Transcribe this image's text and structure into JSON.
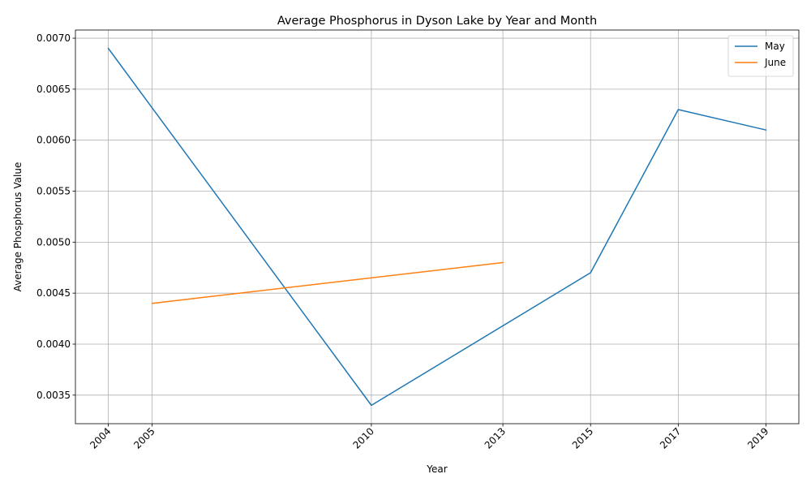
{
  "chart_data": {
    "type": "line",
    "title": "Average Phosphorus in Dyson Lake by Year and Month",
    "xlabel": "Year",
    "ylabel": "Average Phosphorus Value",
    "xlim": [
      2003.25,
      2019.75
    ],
    "ylim": [
      0.00322,
      0.00708
    ],
    "x_ticks": [
      "2004",
      "2005",
      "2010",
      "2013",
      "2015",
      "2017",
      "2019"
    ],
    "y_ticks": [
      "0.0035",
      "0.0040",
      "0.0045",
      "0.0050",
      "0.0055",
      "0.0060",
      "0.0065",
      "0.0070"
    ],
    "grid": true,
    "legend_position": "top-right",
    "series": [
      {
        "name": "May",
        "color": "#1f77b4",
        "points": [
          {
            "x": 2004,
            "y": 0.0069
          },
          {
            "x": 2010,
            "y": 0.0034
          },
          {
            "x": 2015,
            "y": 0.0047
          },
          {
            "x": 2017,
            "y": 0.0063
          },
          {
            "x": 2019,
            "y": 0.0061
          }
        ]
      },
      {
        "name": "June",
        "color": "#ff7f0e",
        "points": [
          {
            "x": 2005,
            "y": 0.0044
          },
          {
            "x": 2013,
            "y": 0.0048
          }
        ]
      }
    ]
  }
}
